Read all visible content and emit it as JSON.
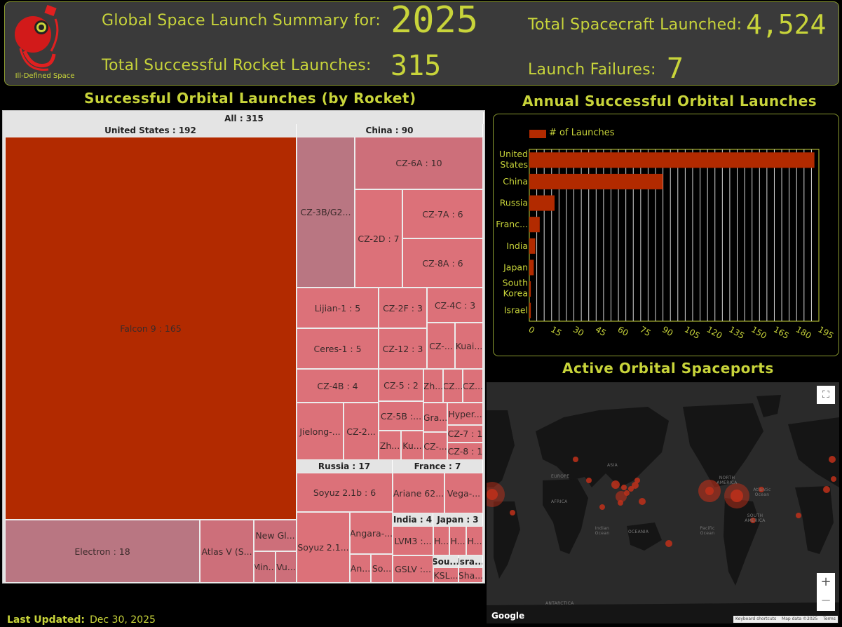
{
  "header": {
    "logo_text": "Ill-Defined Space",
    "summary_label": "Global Space Launch Summary for:",
    "year": "2025",
    "spacecraft_label": "Total Spacecraft Launched:",
    "spacecraft_value": "4,524",
    "successful_label": "Total Successful Rocket Launches:",
    "successful_value": "315",
    "failures_label": "Launch Failures:",
    "failures_value": "7"
  },
  "titles": {
    "treemap": "Successful Orbital Launches (by Rocket)",
    "bar": "Annual Successful Orbital Launches",
    "map": "Active Orbital Spaceports"
  },
  "treemap": {
    "root": "All : 315",
    "groups": [
      {
        "name": "United States : 192"
      },
      {
        "name": "China : 90"
      },
      {
        "name": "Russia : 17"
      },
      {
        "name": "France : 7"
      },
      {
        "name": "India : 4"
      },
      {
        "name": "Japan : 3"
      },
      {
        "name": "Sou..."
      },
      {
        "name": "Isra..."
      }
    ],
    "cells": [
      {
        "label": "Falcon 9 : 165"
      },
      {
        "label": "Electron : 18"
      },
      {
        "label": "Atlas V (S..."
      },
      {
        "label": "New Gl..."
      },
      {
        "label": "Min..."
      },
      {
        "label": "Vu..."
      },
      {
        "label": "CZ-3B/G2..."
      },
      {
        "label": "CZ-6A : 10"
      },
      {
        "label": "CZ-2D : 7"
      },
      {
        "label": "CZ-7A : 6"
      },
      {
        "label": "CZ-8A : 6"
      },
      {
        "label": "Lijian-1 : 5"
      },
      {
        "label": "CZ-2F : 3"
      },
      {
        "label": "CZ-4C : 3"
      },
      {
        "label": "Ceres-1 : 5"
      },
      {
        "label": "CZ-12 : 3"
      },
      {
        "label": "CZ-..."
      },
      {
        "label": "Kuai..."
      },
      {
        "label": "CZ-4B : 4"
      },
      {
        "label": "CZ-5 : 2"
      },
      {
        "label": "Zh..."
      },
      {
        "label": "CZ..."
      },
      {
        "label": "CZ..."
      },
      {
        "label": "Jielong-..."
      },
      {
        "label": "CZ-2..."
      },
      {
        "label": "CZ-5B :..."
      },
      {
        "label": "Gra..."
      },
      {
        "label": "Hyper..."
      },
      {
        "label": "CZ-7 : 1"
      },
      {
        "label": "Zh..."
      },
      {
        "label": "Ku..."
      },
      {
        "label": "CZ-..."
      },
      {
        "label": "CZ-8 : 1"
      },
      {
        "label": "Soyuz 2.1b : 6"
      },
      {
        "label": "Soyuz 2.1..."
      },
      {
        "label": "Angara-..."
      },
      {
        "label": "An..."
      },
      {
        "label": "So..."
      },
      {
        "label": "Ariane 62..."
      },
      {
        "label": "Vega-..."
      },
      {
        "label": "LVM3 :..."
      },
      {
        "label": "GSLV :..."
      },
      {
        "label": "H..."
      },
      {
        "label": "H..."
      },
      {
        "label": "H..."
      },
      {
        "label": "KSL..."
      },
      {
        "label": "Sha..."
      }
    ]
  },
  "chart_data": {
    "type": "bar",
    "orientation": "horizontal",
    "title": "Annual Successful Orbital Launches",
    "categories": [
      "United States",
      "China",
      "Russia",
      "Franc...",
      "India",
      "Japan",
      "South Korea",
      "Israel"
    ],
    "series": [
      {
        "name": "# of Launches",
        "values": [
          192,
          90,
          17,
          7,
          4,
          3,
          1,
          1
        ]
      }
    ],
    "xlim": [
      0,
      195
    ],
    "xticks": [
      "0",
      "15",
      "30",
      "45",
      "60",
      "75",
      "90",
      "105",
      "120",
      "135",
      "150",
      "165",
      "180",
      "195"
    ],
    "grid": true,
    "legend": "top-left",
    "colors": {
      "bar": "#b22a00",
      "text": "#c8d43a"
    }
  },
  "map": {
    "labels": {
      "europe": "EUROPE",
      "asia": "ASIA",
      "africa": "AFRICA",
      "oceania": "OCEANIA",
      "north_america": "NORTH AMERICA",
      "south_america": "SOUTH AMERICA",
      "antarctica": "ANTARCTICA",
      "atlantic": "Atlantic Ocean",
      "indian": "Indian Ocean",
      "pacific": "Pacific Ocean"
    },
    "fullscreen_icon": "fullscreen-icon",
    "zoom_in": "+",
    "zoom_out": "−",
    "google": "Google",
    "shortcuts": "Keyboard shortcuts",
    "mapdata": "Map data ©2025",
    "terms": "Terms"
  },
  "footer": {
    "label": "Last Updated:",
    "value": "Dec 30, 2025"
  }
}
